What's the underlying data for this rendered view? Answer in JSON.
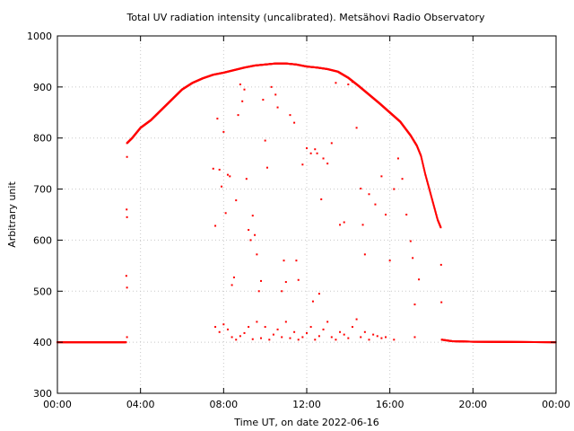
{
  "chart_data": {
    "type": "scatter",
    "title": "Total UV radiation intensity (uncalibrated). Metsähovi Radio Observatory",
    "xlabel": "Time UT, on date 2022-06-16",
    "ylabel": "Arbitrary unit",
    "xlim": [
      0,
      24
    ],
    "ylim": [
      300,
      1000
    ],
    "x_ticks": [
      {
        "value": 0,
        "label": "00:00"
      },
      {
        "value": 4,
        "label": "04:00"
      },
      {
        "value": 8,
        "label": "08:00"
      },
      {
        "value": 12,
        "label": "12:00"
      },
      {
        "value": 16,
        "label": "16:00"
      },
      {
        "value": 20,
        "label": "20:00"
      },
      {
        "value": 24,
        "label": "00:00"
      }
    ],
    "y_ticks": [
      {
        "value": 300,
        "label": "300"
      },
      {
        "value": 400,
        "label": "400"
      },
      {
        "value": 500,
        "label": "500"
      },
      {
        "value": 600,
        "label": "600"
      },
      {
        "value": 700,
        "label": "700"
      },
      {
        "value": 800,
        "label": "800"
      },
      {
        "value": 900,
        "label": "900"
      },
      {
        "value": 1000,
        "label": "1000"
      }
    ],
    "grid": true,
    "series": [
      {
        "color": "#ff0000",
        "marker": "dot",
        "envelope": [
          [
            0.0,
            400
          ],
          [
            3.3,
            400
          ],
          [
            3.35,
            790
          ],
          [
            3.6,
            800
          ],
          [
            4.0,
            820
          ],
          [
            4.5,
            835
          ],
          [
            5.0,
            855
          ],
          [
            5.5,
            875
          ],
          [
            6.0,
            895
          ],
          [
            6.5,
            908
          ],
          [
            7.0,
            917
          ],
          [
            7.5,
            924
          ],
          [
            8.0,
            928
          ],
          [
            8.5,
            933
          ],
          [
            9.0,
            938
          ],
          [
            9.5,
            942
          ],
          [
            10.0,
            944
          ],
          [
            10.5,
            946
          ],
          [
            11.0,
            946
          ],
          [
            11.5,
            944
          ],
          [
            12.0,
            940
          ],
          [
            12.5,
            938
          ],
          [
            13.0,
            935
          ],
          [
            13.5,
            930
          ],
          [
            14.0,
            918
          ],
          [
            14.5,
            902
          ],
          [
            15.0,
            885
          ],
          [
            15.5,
            868
          ],
          [
            16.0,
            850
          ],
          [
            16.5,
            832
          ],
          [
            17.0,
            805
          ],
          [
            17.3,
            785
          ],
          [
            17.5,
            765
          ],
          [
            17.7,
            730
          ],
          [
            17.9,
            700
          ],
          [
            18.1,
            670
          ],
          [
            18.3,
            640
          ],
          [
            18.45,
            625
          ],
          [
            18.5,
            405
          ],
          [
            19.0,
            402
          ],
          [
            20.0,
            401
          ],
          [
            24.0,
            400
          ]
        ],
        "scatter_points": [
          [
            3.35,
            763
          ],
          [
            3.35,
            645
          ],
          [
            3.35,
            507
          ],
          [
            3.35,
            410
          ],
          [
            7.5,
            740
          ],
          [
            7.6,
            628
          ],
          [
            7.7,
            838
          ],
          [
            7.8,
            738
          ],
          [
            7.9,
            705
          ],
          [
            8.0,
            812
          ],
          [
            8.1,
            653
          ],
          [
            8.2,
            728
          ],
          [
            8.3,
            725
          ],
          [
            8.4,
            512
          ],
          [
            8.5,
            527
          ],
          [
            8.6,
            678
          ],
          [
            8.7,
            845
          ],
          [
            8.8,
            905
          ],
          [
            8.9,
            872
          ],
          [
            9.0,
            895
          ],
          [
            9.1,
            720
          ],
          [
            9.2,
            620
          ],
          [
            9.3,
            600
          ],
          [
            9.4,
            648
          ],
          [
            9.5,
            610
          ],
          [
            9.6,
            572
          ],
          [
            9.7,
            500
          ],
          [
            9.8,
            520
          ],
          [
            9.9,
            875
          ],
          [
            10.0,
            795
          ],
          [
            10.1,
            742
          ],
          [
            10.3,
            900
          ],
          [
            10.5,
            885
          ],
          [
            10.6,
            860
          ],
          [
            10.8,
            500
          ],
          [
            10.9,
            560
          ],
          [
            11.0,
            518
          ],
          [
            11.2,
            845
          ],
          [
            11.4,
            830
          ],
          [
            11.5,
            560
          ],
          [
            11.6,
            522
          ],
          [
            11.8,
            748
          ],
          [
            12.0,
            780
          ],
          [
            12.2,
            770
          ],
          [
            12.3,
            480
          ],
          [
            12.4,
            778
          ],
          [
            12.5,
            770
          ],
          [
            12.6,
            495
          ],
          [
            12.7,
            680
          ],
          [
            12.8,
            760
          ],
          [
            13.0,
            750
          ],
          [
            13.2,
            790
          ],
          [
            13.4,
            908
          ],
          [
            13.6,
            630
          ],
          [
            13.8,
            635
          ],
          [
            14.0,
            905
          ],
          [
            14.2,
            910
          ],
          [
            14.4,
            820
          ],
          [
            14.6,
            701
          ],
          [
            14.7,
            630
          ],
          [
            14.8,
            572
          ],
          [
            15.0,
            690
          ],
          [
            15.3,
            670
          ],
          [
            15.6,
            725
          ],
          [
            15.8,
            650
          ],
          [
            16.0,
            560
          ],
          [
            16.2,
            700
          ],
          [
            16.4,
            760
          ],
          [
            16.6,
            720
          ],
          [
            16.8,
            650
          ],
          [
            17.0,
            598
          ],
          [
            17.1,
            565
          ],
          [
            17.2,
            474
          ],
          [
            17.4,
            523
          ],
          [
            7.6,
            430
          ],
          [
            7.8,
            420
          ],
          [
            8.0,
            435
          ],
          [
            8.2,
            425
          ],
          [
            8.4,
            410
          ],
          [
            8.6,
            405
          ],
          [
            8.8,
            412
          ],
          [
            9.0,
            418
          ],
          [
            9.2,
            430
          ],
          [
            9.4,
            406
          ],
          [
            9.6,
            440
          ],
          [
            9.8,
            408
          ],
          [
            10.0,
            430
          ],
          [
            10.2,
            405
          ],
          [
            10.4,
            415
          ],
          [
            10.6,
            425
          ],
          [
            10.8,
            410
          ],
          [
            11.0,
            440
          ],
          [
            11.2,
            408
          ],
          [
            11.4,
            420
          ],
          [
            11.6,
            405
          ],
          [
            11.8,
            410
          ],
          [
            12.0,
            418
          ],
          [
            12.2,
            430
          ],
          [
            12.4,
            405
          ],
          [
            12.6,
            412
          ],
          [
            12.8,
            425
          ],
          [
            13.0,
            440
          ],
          [
            13.2,
            410
          ],
          [
            13.4,
            405
          ],
          [
            13.6,
            420
          ],
          [
            13.8,
            415
          ],
          [
            14.0,
            408
          ],
          [
            14.2,
            430
          ],
          [
            14.4,
            445
          ],
          [
            14.6,
            410
          ],
          [
            14.8,
            420
          ],
          [
            15.0,
            405
          ],
          [
            15.2,
            415
          ],
          [
            15.4,
            412
          ],
          [
            15.6,
            408
          ],
          [
            15.8,
            410
          ],
          [
            16.2,
            405
          ],
          [
            17.2,
            410
          ]
        ]
      }
    ]
  }
}
